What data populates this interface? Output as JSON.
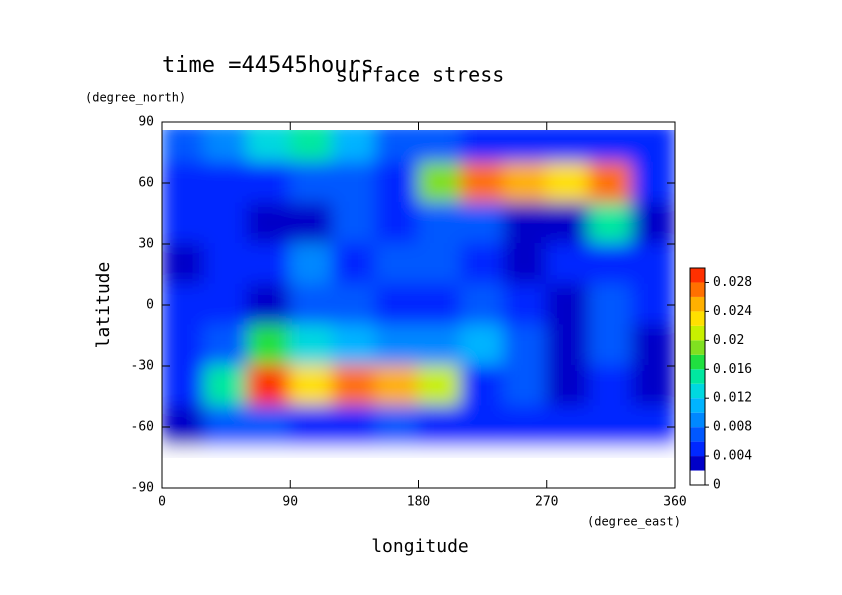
{
  "chart_data": {
    "type": "contour",
    "title": "surface stress",
    "subtitle": "time =44545hours",
    "xlabel": "longitude",
    "xunit": "(degree_east)",
    "ylabel": "latitude",
    "yunit": "(degree_north)",
    "xlim": [
      0,
      360
    ],
    "xticks": [
      0,
      90,
      180,
      270,
      360
    ],
    "ylim": [
      -90,
      90
    ],
    "yticks": [
      -90,
      -60,
      -30,
      0,
      30,
      60,
      90
    ],
    "x": [
      15,
      45,
      75,
      105,
      135,
      165,
      195,
      225,
      255,
      285,
      315,
      345
    ],
    "y": [
      80,
      60,
      40,
      20,
      0,
      -20,
      -40,
      -60,
      -80
    ],
    "z": [
      [
        0.006,
        0.008,
        0.012,
        0.014,
        0.01,
        0.006,
        0.006,
        0.004,
        0.004,
        0.004,
        0.004,
        0.004
      ],
      [
        0.004,
        0.004,
        0.004,
        0.006,
        0.006,
        0.004,
        0.018,
        0.026,
        0.024,
        0.022,
        0.026,
        0.004
      ],
      [
        0.004,
        0.004,
        0.002,
        0.002,
        0.006,
        0.004,
        0.006,
        0.006,
        0.002,
        0.002,
        0.014,
        0.002
      ],
      [
        0.002,
        0.004,
        0.004,
        0.008,
        0.004,
        0.006,
        0.006,
        0.004,
        0.002,
        0.004,
        0.004,
        0.004
      ],
      [
        0.004,
        0.004,
        0.002,
        0.006,
        0.006,
        0.004,
        0.004,
        0.006,
        0.004,
        0.002,
        0.006,
        0.004
      ],
      [
        0.004,
        0.006,
        0.016,
        0.012,
        0.01,
        0.008,
        0.008,
        0.01,
        0.006,
        0.002,
        0.006,
        0.002
      ],
      [
        0.004,
        0.014,
        0.028,
        0.022,
        0.026,
        0.024,
        0.02,
        0.004,
        0.006,
        0.002,
        0.004,
        0.002
      ],
      [
        0.002,
        0.006,
        0.006,
        0.004,
        0.004,
        0.006,
        0.004,
        0.004,
        0.004,
        0.004,
        0.004,
        0.004
      ],
      [
        0,
        0,
        0,
        0,
        0,
        0,
        0,
        0,
        0,
        0,
        0,
        0
      ]
    ],
    "clim": [
      0,
      0.03
    ],
    "cticks": [
      0,
      0.004,
      0.008,
      0.012,
      0.016,
      0.02,
      0.024,
      0.028
    ],
    "levels": [
      0,
      0.002,
      0.004,
      0.006,
      0.008,
      0.01,
      0.012,
      0.014,
      0.016,
      0.018,
      0.02,
      0.022,
      0.024,
      0.026,
      0.028
    ],
    "colors": [
      "#ffffff",
      "#0000c8",
      "#0028ff",
      "#0058ff",
      "#0088ff",
      "#00b4ff",
      "#00d8e0",
      "#00e8a0",
      "#20e040",
      "#80e020",
      "#c8f000",
      "#ffe000",
      "#ffb000",
      "#ff7000",
      "#ff3000"
    ]
  }
}
